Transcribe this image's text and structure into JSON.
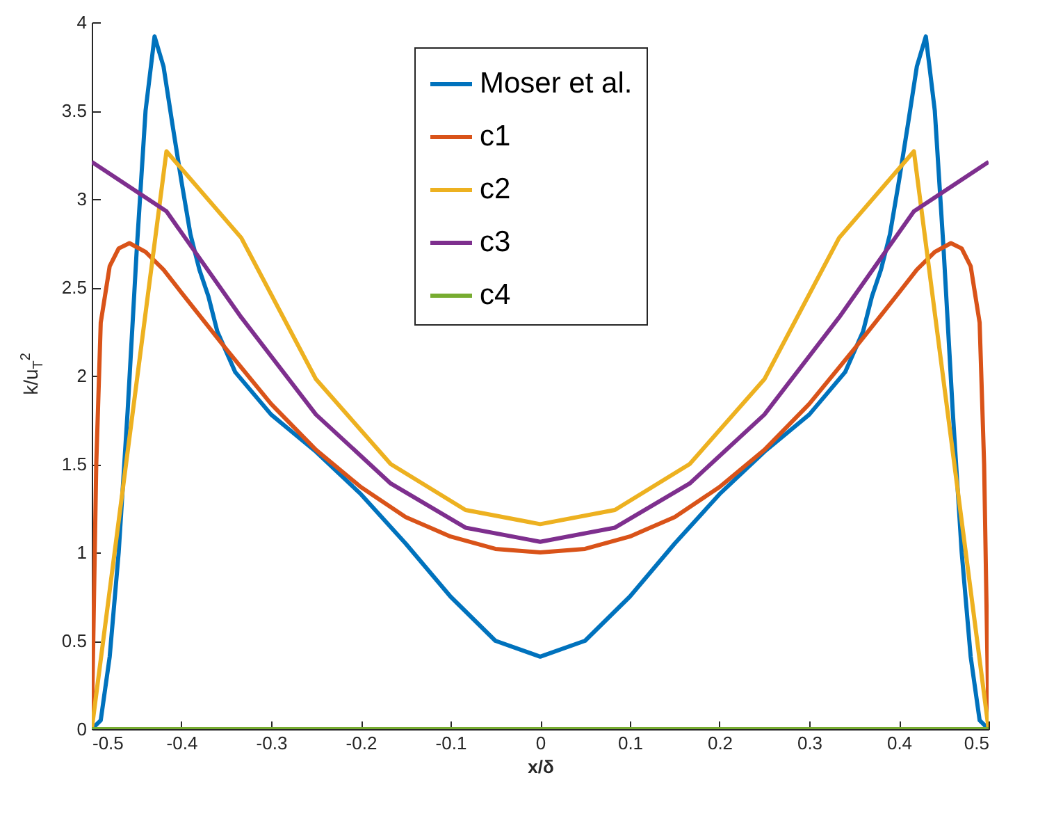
{
  "chart_data": {
    "type": "line",
    "xlabel": "x/δ",
    "ylabel": "k/u$_{T}$$^{2}$",
    "xlim": [
      -0.5,
      0.5
    ],
    "xticks": [
      -0.5,
      -0.4,
      -0.3,
      -0.2,
      -0.1,
      0,
      0.1,
      0.2,
      0.3,
      0.4,
      0.5
    ],
    "ylim": [
      0,
      4
    ],
    "yticks": [
      0,
      0.5,
      1,
      1.5,
      2,
      2.5,
      3,
      3.5,
      4
    ],
    "grid": false,
    "legend": "top",
    "line_style": "solid",
    "marker": "none",
    "series": [
      {
        "name": "Moser et al.",
        "color": "#0072bd",
        "x": [
          -0.5,
          -0.49,
          -0.48,
          -0.47,
          -0.46,
          -0.45,
          -0.44,
          -0.43,
          -0.42,
          -0.41,
          -0.4,
          -0.39,
          -0.38,
          -0.37,
          -0.36,
          -0.34,
          -0.3,
          -0.25,
          -0.2,
          -0.15,
          -0.1,
          -0.05,
          0,
          0.05,
          0.1,
          0.15,
          0.2,
          0.25,
          0.3,
          0.34,
          0.36,
          0.37,
          0.38,
          0.39,
          0.4,
          0.41,
          0.42,
          0.43,
          0.44,
          0.45,
          0.46,
          0.47,
          0.48,
          0.49,
          0.5
        ],
        "values": [
          0,
          0.05,
          0.41,
          1.0,
          1.8,
          2.7,
          3.5,
          3.92,
          3.75,
          3.42,
          3.1,
          2.8,
          2.6,
          2.45,
          2.25,
          2.02,
          1.78,
          1.57,
          1.33,
          1.05,
          0.75,
          0.5,
          0.41,
          0.5,
          0.75,
          1.05,
          1.33,
          1.57,
          1.78,
          2.02,
          2.25,
          2.45,
          2.6,
          2.8,
          3.1,
          3.42,
          3.75,
          3.92,
          3.5,
          2.7,
          1.8,
          1.0,
          0.41,
          0.05,
          0
        ]
      },
      {
        "name": "c1",
        "color": "#d95319",
        "x": [
          -0.5,
          -0.495,
          -0.49,
          -0.48,
          -0.47,
          -0.458,
          -0.44,
          -0.42,
          -0.4,
          -0.35,
          -0.3,
          -0.25,
          -0.2,
          -0.15,
          -0.1,
          -0.05,
          0,
          0.05,
          0.1,
          0.15,
          0.2,
          0.25,
          0.3,
          0.35,
          0.4,
          0.42,
          0.44,
          0.458,
          0.47,
          0.48,
          0.49,
          0.495,
          0.5
        ],
        "values": [
          0,
          1.5,
          2.3,
          2.62,
          2.72,
          2.75,
          2.7,
          2.6,
          2.47,
          2.15,
          1.84,
          1.58,
          1.37,
          1.2,
          1.09,
          1.02,
          1.0,
          1.02,
          1.09,
          1.2,
          1.37,
          1.58,
          1.84,
          2.15,
          2.47,
          2.6,
          2.7,
          2.75,
          2.72,
          2.62,
          2.3,
          1.5,
          0
        ]
      },
      {
        "name": "c2",
        "color": "#edb120",
        "x": [
          -0.5,
          -0.4167,
          -0.3333,
          -0.25,
          -0.1667,
          -0.0833,
          0,
          0.0833,
          0.1667,
          0.25,
          0.3333,
          0.4167,
          0.5
        ],
        "values": [
          0,
          3.27,
          2.78,
          1.98,
          1.5,
          1.24,
          1.16,
          1.24,
          1.5,
          1.98,
          2.78,
          3.27,
          0
        ]
      },
      {
        "name": "c3",
        "color": "#7e2f8e",
        "x": [
          -0.5,
          -0.4167,
          -0.3333,
          -0.25,
          -0.1667,
          -0.0833,
          0,
          0.0833,
          0.1667,
          0.25,
          0.3333,
          0.4167,
          0.5
        ],
        "values": [
          3.21,
          2.93,
          2.33,
          1.78,
          1.39,
          1.14,
          1.06,
          1.14,
          1.39,
          1.78,
          2.33,
          2.93,
          3.21
        ]
      },
      {
        "name": "c4",
        "color": "#77ac30",
        "x": [
          -0.5,
          0.5
        ],
        "values": [
          0,
          0
        ]
      }
    ]
  }
}
